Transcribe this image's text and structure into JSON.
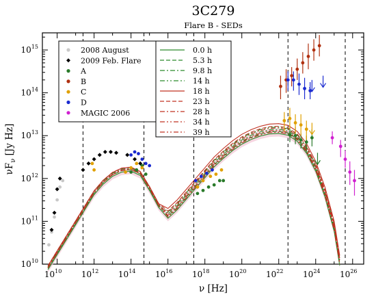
{
  "chart_data": {
    "type": "scatter",
    "title": "3C279",
    "subtitle": "Flare B - SEDs",
    "xlabel": "ν [Hz]",
    "ylabel": "νF_ν [Jy Hz]",
    "xscale": "log",
    "yscale": "log",
    "xlim_log10": [
      9.2,
      26.6
    ],
    "ylim_log10": [
      10,
      15.4
    ],
    "grid": false,
    "legend_placement": [
      "top-left",
      "top-center"
    ],
    "x_ticks": [
      {
        "base": "10",
        "exp": "10"
      },
      {
        "base": "10",
        "exp": "12"
      },
      {
        "base": "10",
        "exp": "14"
      },
      {
        "base": "10",
        "exp": "16"
      },
      {
        "base": "10",
        "exp": "18"
      },
      {
        "base": "10",
        "exp": "20"
      },
      {
        "base": "10",
        "exp": "22"
      },
      {
        "base": "10",
        "exp": "24"
      },
      {
        "base": "10",
        "exp": "26"
      }
    ],
    "y_ticks": [
      {
        "base": "10",
        "exp": "10"
      },
      {
        "base": "10",
        "exp": "11"
      },
      {
        "base": "10",
        "exp": "12"
      },
      {
        "base": "10",
        "exp": "13"
      },
      {
        "base": "10",
        "exp": "14"
      },
      {
        "base": "10",
        "exp": "15"
      }
    ],
    "vertical_dashed_lines_log10_nu": [
      11.4,
      14.7,
      17.4,
      22.5,
      25.6
    ],
    "data_series": [
      {
        "name": "2008 August",
        "color": "#c8c8c8",
        "marker": "circle",
        "points": [
          [
            9.55,
            10.45
          ],
          [
            9.7,
            10.75
          ],
          [
            9.85,
            11.1
          ],
          [
            10.0,
            11.5
          ],
          [
            10.15,
            11.8
          ],
          [
            10.3,
            11.95
          ]
        ]
      },
      {
        "name": "2009 Feb. Flare",
        "color": "#000000",
        "marker": "diamond",
        "points": [
          [
            9.7,
            10.8
          ],
          [
            9.85,
            11.2
          ],
          [
            10.0,
            11.75
          ],
          [
            10.15,
            12.0
          ],
          [
            11.4,
            12.2
          ],
          [
            11.7,
            12.35
          ],
          [
            12.0,
            12.45
          ],
          [
            12.3,
            12.55
          ],
          [
            12.6,
            12.62
          ],
          [
            12.9,
            12.62
          ],
          [
            13.2,
            12.6
          ],
          [
            13.8,
            12.55
          ],
          [
            14.2,
            12.45
          ],
          [
            14.5,
            12.35
          ]
        ]
      },
      {
        "name": "A",
        "color": "#2a7a2a",
        "marker": "circle",
        "points": [
          [
            14.0,
            12.15
          ],
          [
            14.3,
            12.2
          ],
          [
            14.6,
            12.3
          ],
          [
            14.8,
            12.1
          ],
          [
            17.6,
            11.65
          ],
          [
            17.9,
            11.72
          ],
          [
            18.2,
            11.8
          ],
          [
            18.5,
            11.85
          ],
          [
            18.8,
            11.95
          ],
          [
            19.0,
            11.95
          ]
        ],
        "errorbars": [
          [
            22.6,
            13.02,
            12.85,
            13.2
          ],
          [
            22.9,
            13.0,
            12.8,
            13.2
          ],
          [
            23.2,
            12.9,
            12.7,
            13.05
          ],
          [
            23.5,
            12.85,
            12.6,
            13.0
          ],
          [
            23.8,
            12.95,
            12.75,
            13.15
          ]
        ],
        "upper_limits": [
          [
            24.1,
            12.6
          ]
        ]
      },
      {
        "name": "B",
        "color": "#b03010",
        "marker": "circle",
        "points": [],
        "errorbars": [
          [
            22.1,
            14.15,
            13.85,
            14.4
          ],
          [
            22.4,
            14.3,
            14.0,
            14.55
          ],
          [
            22.7,
            14.4,
            14.15,
            14.6
          ],
          [
            23.0,
            14.55,
            14.3,
            14.8
          ],
          [
            23.3,
            14.7,
            14.45,
            14.95
          ],
          [
            23.6,
            14.85,
            14.55,
            15.15
          ],
          [
            23.9,
            15.0,
            14.75,
            15.25
          ],
          [
            24.2,
            15.1,
            14.85,
            15.35
          ]
        ]
      },
      {
        "name": "C",
        "color": "#e0a000",
        "marker": "circle",
        "points": [
          [
            11.9,
            12.35
          ],
          [
            12.0,
            12.2
          ],
          [
            13.7,
            12.15
          ],
          [
            14.0,
            12.25
          ],
          [
            14.3,
            12.35
          ],
          [
            14.6,
            12.25
          ],
          [
            17.6,
            11.8
          ],
          [
            17.9,
            11.95
          ],
          [
            18.3,
            12.05
          ],
          [
            18.6,
            12.1
          ],
          [
            18.9,
            12.2
          ]
        ],
        "errorbars": [
          [
            22.3,
            13.35,
            13.1,
            13.55
          ],
          [
            22.6,
            13.4,
            13.15,
            13.65
          ],
          [
            22.9,
            13.3,
            13.05,
            13.5
          ],
          [
            23.2,
            13.25,
            13.0,
            13.5
          ],
          [
            23.5,
            13.15,
            12.9,
            13.35
          ]
        ],
        "upper_limits": [
          [
            23.8,
            13.3
          ]
        ]
      },
      {
        "name": "D",
        "color": "#1a2ad0",
        "marker": "circle",
        "points": [
          [
            14.0,
            12.55
          ],
          [
            14.2,
            12.62
          ],
          [
            14.4,
            12.58
          ],
          [
            14.6,
            12.45
          ],
          [
            14.8,
            12.35
          ],
          [
            15.0,
            12.3
          ],
          [
            17.5,
            11.95
          ],
          [
            17.8,
            12.05
          ],
          [
            18.1,
            12.12
          ],
          [
            18.4,
            12.2
          ]
        ],
        "errorbars": [
          [
            22.5,
            14.3,
            14.05,
            14.5
          ],
          [
            22.8,
            14.3,
            14.05,
            14.5
          ],
          [
            23.1,
            14.2,
            13.95,
            14.45
          ],
          [
            23.4,
            14.1,
            13.85,
            14.35
          ],
          [
            23.7,
            14.05,
            13.85,
            14.25
          ]
        ],
        "upper_limits": [
          [
            23.8,
            14.3
          ],
          [
            24.4,
            14.4
          ]
        ]
      },
      {
        "name": "MAGIC 2006",
        "color": "#d020d0",
        "marker": "circle",
        "points": [],
        "errorbars": [
          [
            24.9,
            12.95,
            12.8,
            13.1
          ],
          [
            25.35,
            12.75,
            12.5,
            12.9
          ],
          [
            25.6,
            12.45,
            12.25,
            12.65
          ],
          [
            25.85,
            12.15,
            11.85,
            12.4
          ],
          [
            26.1,
            11.95,
            11.6,
            12.2
          ]
        ]
      }
    ],
    "model_series": [
      {
        "name": "0.0 h",
        "color": "#2a8a2a",
        "style": "solid",
        "peak2": 13.05,
        "scale": 1.0
      },
      {
        "name": "5.3 h",
        "color": "#2a8a2a",
        "style": "dash",
        "peak2": 13.1,
        "scale": 1.0
      },
      {
        "name": "9.8 h",
        "color": "#2a8a2a",
        "style": "dashdot",
        "peak2": 13.15,
        "scale": 1.0
      },
      {
        "name": "14 h",
        "color": "#2a8a2a",
        "style": "dashdotdot",
        "peak2": 13.2,
        "scale": 1.0
      },
      {
        "name": "18 h",
        "color": "#c03020",
        "style": "solid",
        "peak2": 13.28,
        "scale": 1.0
      },
      {
        "name": "23 h",
        "color": "#c03020",
        "style": "dash",
        "peak2": 13.22,
        "scale": 1.0
      },
      {
        "name": "28 h",
        "color": "#c03020",
        "style": "dashdot",
        "peak2": 13.18,
        "scale": 1.0
      },
      {
        "name": "34 h",
        "color": "#c03020",
        "style": "dashdotdot",
        "peak2": 13.12,
        "scale": 1.0
      },
      {
        "name": "39 h",
        "color": "#c03020",
        "style": "dashdotdot",
        "peak2": 13.08,
        "scale": 1.0
      }
    ],
    "model_shape": {
      "x_log10": [
        9.5,
        10.0,
        10.5,
        11.0,
        11.5,
        12.0,
        12.5,
        13.0,
        13.5,
        14.0,
        14.5,
        15.0,
        15.5,
        16.0,
        16.5,
        17.0,
        17.5,
        18.0,
        18.5,
        19.0,
        19.5,
        20.0,
        20.5,
        21.0,
        21.5,
        22.0,
        22.5,
        23.0,
        23.5,
        24.0,
        24.5,
        25.0,
        25.3
      ],
      "y_log10": [
        9.9,
        10.25,
        10.6,
        10.95,
        11.3,
        11.65,
        11.9,
        12.08,
        12.18,
        12.2,
        12.1,
        11.75,
        11.35,
        11.1,
        11.3,
        11.55,
        11.8,
        12.05,
        12.3,
        12.5,
        12.68,
        12.83,
        12.94,
        13.02,
        13.07,
        13.08,
        13.04,
        12.9,
        12.62,
        12.2,
        11.6,
        10.8,
        10.0
      ]
    }
  }
}
